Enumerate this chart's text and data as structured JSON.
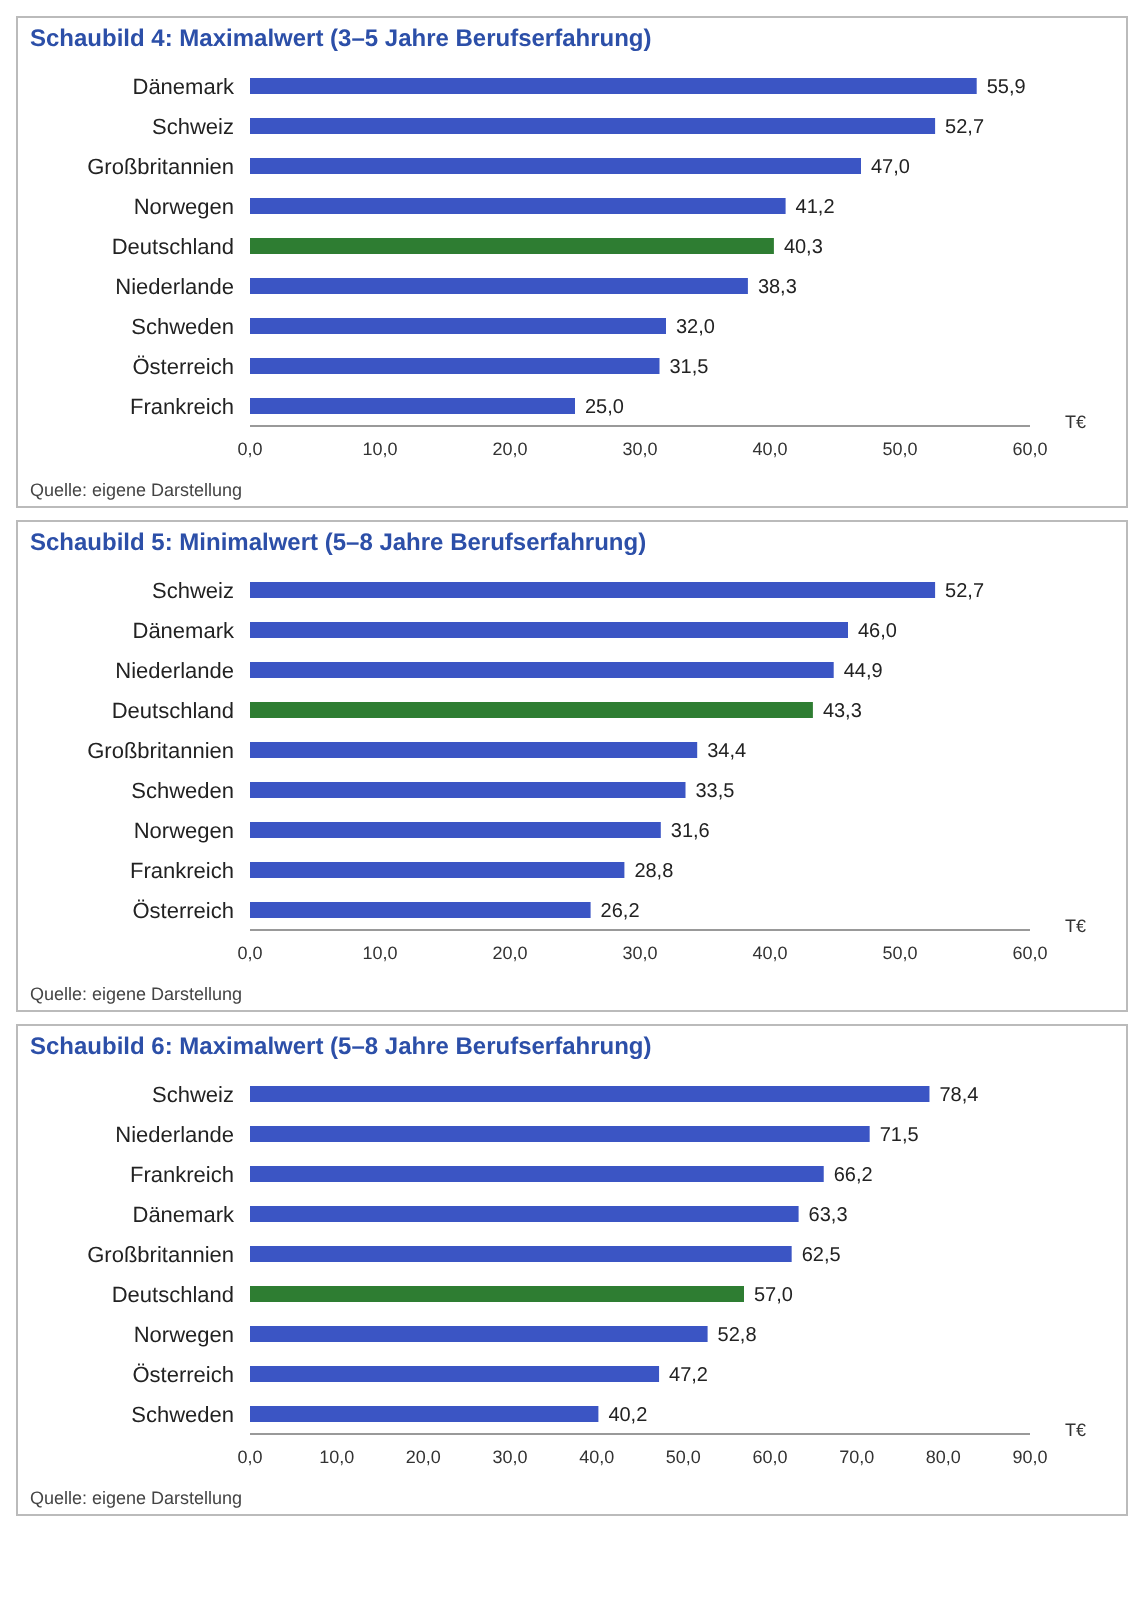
{
  "chart_data": [
    {
      "type": "bar",
      "orientation": "horizontal",
      "title": "Schaubild 4: Maximalwert (3–5 Jahre Berufserfahrung)",
      "xlabel": "T€",
      "categories": [
        "Dänemark",
        "Schweiz",
        "Großbritannien",
        "Norwegen",
        "Deutschland",
        "Niederlande",
        "Schweden",
        "Österreich",
        "Frankreich"
      ],
      "values": [
        55.9,
        52.7,
        47.0,
        41.2,
        40.3,
        38.3,
        32.0,
        31.5,
        25.0
      ],
      "value_labels": [
        "55,9",
        "52,7",
        "47,0",
        "41,2",
        "40,3",
        "38,3",
        "32,0",
        "31,5",
        "25,0"
      ],
      "colors": [
        "#3b55c4",
        "#3b55c4",
        "#3b55c4",
        "#3b55c4",
        "#2e7d32",
        "#3b55c4",
        "#3b55c4",
        "#3b55c4",
        "#3b55c4"
      ],
      "xlim": [
        0,
        60
      ],
      "xticks": [
        {
          "value": 0,
          "label": "0,0"
        },
        {
          "value": 10,
          "label": "10,0"
        },
        {
          "value": 20,
          "label": "20,0"
        },
        {
          "value": 30,
          "label": "30,0"
        },
        {
          "value": 40,
          "label": "40,0"
        },
        {
          "value": 50,
          "label": "50,0"
        },
        {
          "value": 60,
          "label": "60,0"
        }
      ],
      "annotations": [
        "Quelle: eigene Darstellung"
      ]
    },
    {
      "type": "bar",
      "orientation": "horizontal",
      "title": "Schaubild 5: Minimalwert (5–8 Jahre Berufserfahrung)",
      "xlabel": "T€",
      "categories": [
        "Schweiz",
        "Dänemark",
        "Niederlande",
        "Deutschland",
        "Großbritannien",
        "Schweden",
        "Norwegen",
        "Frankreich",
        "Österreich"
      ],
      "values": [
        52.7,
        46.0,
        44.9,
        43.3,
        34.4,
        33.5,
        31.6,
        28.8,
        26.2
      ],
      "value_labels": [
        "52,7",
        "46,0",
        "44,9",
        "43,3",
        "34,4",
        "33,5",
        "31,6",
        "28,8",
        "26,2"
      ],
      "colors": [
        "#3b55c4",
        "#3b55c4",
        "#3b55c4",
        "#2e7d32",
        "#3b55c4",
        "#3b55c4",
        "#3b55c4",
        "#3b55c4",
        "#3b55c4"
      ],
      "xlim": [
        0,
        60
      ],
      "xticks": [
        {
          "value": 0,
          "label": "0,0"
        },
        {
          "value": 10,
          "label": "10,0"
        },
        {
          "value": 20,
          "label": "20,0"
        },
        {
          "value": 30,
          "label": "30,0"
        },
        {
          "value": 40,
          "label": "40,0"
        },
        {
          "value": 50,
          "label": "50,0"
        },
        {
          "value": 60,
          "label": "60,0"
        }
      ],
      "annotations": [
        "Quelle: eigene Darstellung"
      ]
    },
    {
      "type": "bar",
      "orientation": "horizontal",
      "title": "Schaubild 6: Maximalwert (5–8 Jahre Berufserfahrung)",
      "xlabel": "T€",
      "categories": [
        "Schweiz",
        "Niederlande",
        "Frankreich",
        "Dänemark",
        "Großbritannien",
        "Deutschland",
        "Norwegen",
        "Österreich",
        "Schweden"
      ],
      "values": [
        78.4,
        71.5,
        66.2,
        63.3,
        62.5,
        57.0,
        52.8,
        47.2,
        40.2
      ],
      "value_labels": [
        "78,4",
        "71,5",
        "66,2",
        "63,3",
        "62,5",
        "57,0",
        "52,8",
        "47,2",
        "40,2"
      ],
      "colors": [
        "#3b55c4",
        "#3b55c4",
        "#3b55c4",
        "#3b55c4",
        "#3b55c4",
        "#2e7d32",
        "#3b55c4",
        "#3b55c4",
        "#3b55c4"
      ],
      "xlim": [
        0,
        90
      ],
      "xticks": [
        {
          "value": 0,
          "label": "0,0"
        },
        {
          "value": 10,
          "label": "10,0"
        },
        {
          "value": 20,
          "label": "20,0"
        },
        {
          "value": 30,
          "label": "30,0"
        },
        {
          "value": 40,
          "label": "40,0"
        },
        {
          "value": 50,
          "label": "50,0"
        },
        {
          "value": 60,
          "label": "60,0"
        },
        {
          "value": 70,
          "label": "70,0"
        },
        {
          "value": 80,
          "label": "80,0"
        },
        {
          "value": 90,
          "label": "90,0"
        }
      ],
      "annotations": [
        "Quelle: eigene Darstellung"
      ]
    }
  ]
}
